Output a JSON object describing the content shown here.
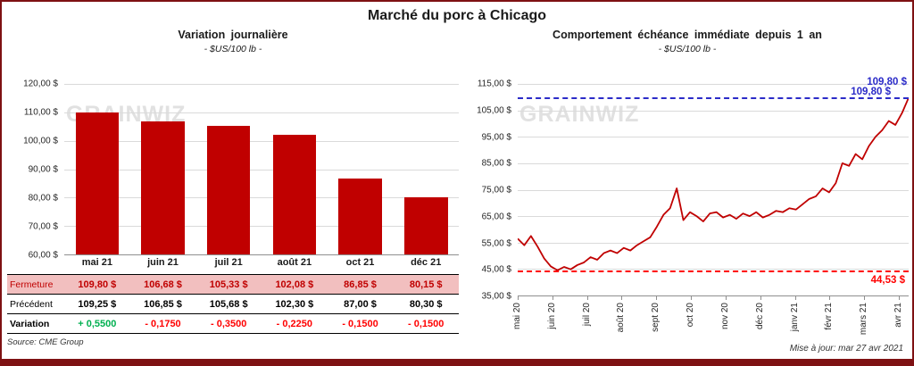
{
  "page": {
    "title": "Marché du porc à Chicago",
    "watermark": "GRAINWIZ",
    "source": "Source: CME Group",
    "updated": "Mise à jour: mar 27 avr 2021"
  },
  "chart_data": [
    {
      "type": "bar",
      "title": "Variation journalière",
      "subtitle": "- $US/100 lb -",
      "ylabel": "$US/100 lb",
      "ylim": [
        60,
        120
      ],
      "grid": true,
      "bar_color": "#C00000",
      "yticks": [
        {
          "value": 120,
          "label": "120,00 $"
        },
        {
          "value": 110,
          "label": "110,00 $"
        },
        {
          "value": 100,
          "label": "100,00 $"
        },
        {
          "value": 90,
          "label": "90,00 $"
        },
        {
          "value": 80,
          "label": "80,00 $"
        },
        {
          "value": 70,
          "label": "70,00 $"
        },
        {
          "value": 60,
          "label": "60,00 $"
        }
      ],
      "categories": [
        "mai 21",
        "juin 21",
        "juil 21",
        "août 21",
        "oct 21",
        "déc 21"
      ],
      "values": [
        109.8,
        106.68,
        105.33,
        102.08,
        86.85,
        80.15
      ]
    },
    {
      "type": "line",
      "title": "Comportement échéance immédiate depuis 1 an",
      "subtitle": "- $US/100 lb -",
      "ylim": [
        35,
        115
      ],
      "grid": true,
      "line_color": "#C00000",
      "yticks": [
        {
          "value": 115,
          "label": "115,00 $"
        },
        {
          "value": 105,
          "label": "105,00 $"
        },
        {
          "value": 95,
          "label": "95,00 $"
        },
        {
          "value": 85,
          "label": "85,00 $"
        },
        {
          "value": 75,
          "label": "75,00 $"
        },
        {
          "value": 65,
          "label": "65,00 $"
        },
        {
          "value": 55,
          "label": "55,00 $"
        },
        {
          "value": 45,
          "label": "45,00 $"
        },
        {
          "value": 35,
          "label": "35,00 $"
        }
      ],
      "x_labels": [
        "mai 20",
        "juin 20",
        "juil 20",
        "août 20",
        "sept 20",
        "oct 20",
        "nov 20",
        "déc 20",
        "janv 21",
        "févr 21",
        "mars 21",
        "avr 21"
      ],
      "values": [
        56.5,
        54.0,
        57.5,
        53.5,
        49.0,
        46.0,
        44.53,
        45.8,
        44.9,
        46.5,
        47.5,
        49.5,
        48.5,
        51.0,
        52.0,
        51.0,
        53.0,
        52.0,
        54.0,
        55.5,
        57.0,
        61.0,
        65.5,
        68.0,
        75.5,
        63.5,
        66.5,
        65.0,
        63.0,
        66.0,
        66.5,
        64.5,
        65.5,
        64.0,
        66.0,
        65.0,
        66.5,
        64.5,
        65.5,
        67.0,
        66.5,
        68.0,
        67.5,
        69.5,
        71.5,
        72.5,
        75.5,
        74.0,
        77.5,
        85.0,
        84.0,
        88.5,
        86.5,
        91.5,
        95.0,
        97.5,
        101.0,
        99.5,
        104.0,
        109.8
      ],
      "high_line": {
        "value": 109.8,
        "label": "109,80 $",
        "color": "#2B2BC8"
      },
      "low_line": {
        "value": 44.53,
        "label": "44,53 $",
        "color": "#FF0000"
      },
      "last_label": "109,80 $"
    }
  ],
  "table": {
    "rows": [
      {
        "key": "fermeture",
        "label": "Fermeture",
        "label_color": "#C00000",
        "bg": "#F2BFBF",
        "text_color": "#C00000",
        "values": [
          "109,80  $",
          "106,68  $",
          "105,33  $",
          "102,08  $",
          "86,85  $",
          "80,15  $"
        ]
      },
      {
        "key": "precedent",
        "label": "Précédent",
        "label_color": "#000000",
        "bg": "#FFFFFF",
        "text_color": "#000000",
        "values": [
          "109,25  $",
          "106,85  $",
          "105,68  $",
          "102,30  $",
          "87,00  $",
          "80,30  $"
        ]
      },
      {
        "key": "variation",
        "label": "Variation",
        "label_color": "#000000",
        "bg": "#FFFFFF",
        "value_colors": [
          "#00B050",
          "#FF0000",
          "#FF0000",
          "#FF0000",
          "#FF0000",
          "#FF0000"
        ],
        "values": [
          "+ 0,5500",
          "- 0,1750",
          "- 0,3500",
          "- 0,2250",
          "- 0,1500",
          "- 0,1500"
        ]
      }
    ]
  }
}
